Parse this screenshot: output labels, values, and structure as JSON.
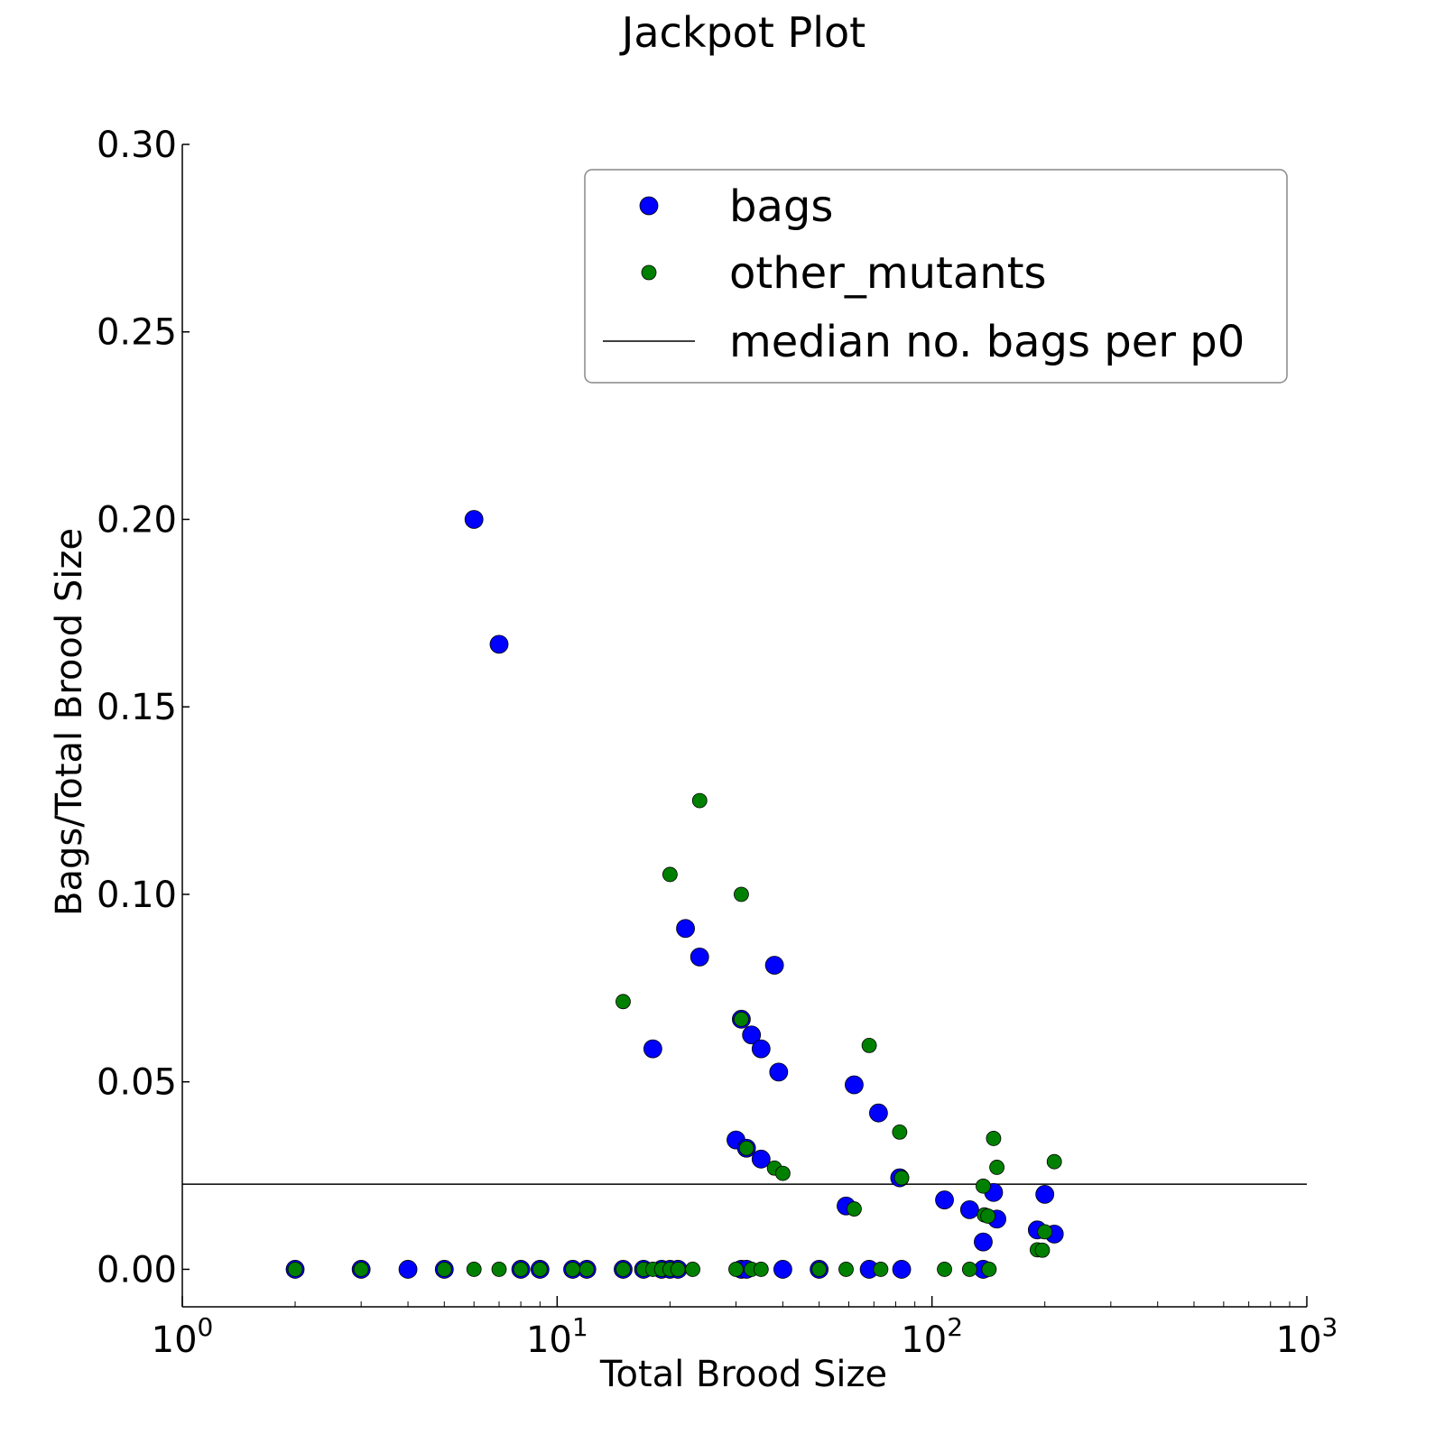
{
  "chart_data": {
    "type": "scatter",
    "title": "Jackpot Plot",
    "xlabel": "Total Brood Size",
    "ylabel": "Bags/Total Brood Size",
    "xscale": "log",
    "xlim": [
      1,
      1000
    ],
    "ylim": [
      -0.01,
      0.3
    ],
    "x_ticks": [
      1,
      10,
      100,
      1000
    ],
    "x_tick_labels": [
      {
        "base": "10",
        "exp": "0"
      },
      {
        "base": "10",
        "exp": "1"
      },
      {
        "base": "10",
        "exp": "2"
      },
      {
        "base": "10",
        "exp": "3"
      }
    ],
    "y_ticks": [
      0.0,
      0.05,
      0.1,
      0.15,
      0.2,
      0.25,
      0.3
    ],
    "y_tick_labels": [
      "0.00",
      "0.05",
      "0.10",
      "0.15",
      "0.20",
      "0.25",
      "0.30"
    ],
    "grid": false,
    "legend_position": "top-right",
    "legend": [
      {
        "label": "bags",
        "kind": "marker",
        "color": "#0000ff",
        "size": "large"
      },
      {
        "label": "other_mutants",
        "kind": "marker",
        "color": "#008000",
        "size": "small"
      },
      {
        "label": "median no. bags per p0",
        "kind": "line",
        "color": "#000000"
      }
    ],
    "reference_line": {
      "name": "median no. bags per p0",
      "y": 0.0227,
      "color": "#000000"
    },
    "series": [
      {
        "name": "bags",
        "color": "#0000ff",
        "points": [
          [
            2,
            0
          ],
          [
            3,
            0
          ],
          [
            4,
            0
          ],
          [
            5,
            0
          ],
          [
            6,
            0.2
          ],
          [
            7,
            0.1667
          ],
          [
            8,
            0
          ],
          [
            9,
            0
          ],
          [
            11,
            0
          ],
          [
            12,
            0
          ],
          [
            15,
            0
          ],
          [
            17,
            0
          ],
          [
            18,
            0.0588
          ],
          [
            19,
            0
          ],
          [
            20,
            0
          ],
          [
            21,
            0
          ],
          [
            22,
            0.0909
          ],
          [
            24,
            0.0833
          ],
          [
            30,
            0.0345
          ],
          [
            31,
            0.0667
          ],
          [
            31,
            0
          ],
          [
            32,
            0.0323
          ],
          [
            32,
            0
          ],
          [
            33,
            0.0625
          ],
          [
            35,
            0.0588
          ],
          [
            35,
            0.0294
          ],
          [
            38,
            0.0811
          ],
          [
            39,
            0.0526
          ],
          [
            40,
            0
          ],
          [
            50,
            0
          ],
          [
            59,
            0.0169
          ],
          [
            62,
            0.0492
          ],
          [
            68,
            0
          ],
          [
            72,
            0.0417
          ],
          [
            82,
            0.0244
          ],
          [
            83,
            0
          ],
          [
            108,
            0.0185
          ],
          [
            126,
            0.0159
          ],
          [
            137,
            0.0073
          ],
          [
            137,
            0
          ],
          [
            146,
            0.0205
          ],
          [
            149,
            0.0134
          ],
          [
            191,
            0.0105
          ],
          [
            200,
            0.02
          ],
          [
            212,
            0.0094
          ]
        ]
      },
      {
        "name": "other_mutants",
        "color": "#008000",
        "points": [
          [
            2,
            0
          ],
          [
            3,
            0
          ],
          [
            5,
            0
          ],
          [
            6,
            0
          ],
          [
            7,
            0
          ],
          [
            8,
            0
          ],
          [
            9,
            0
          ],
          [
            11,
            0
          ],
          [
            12,
            0
          ],
          [
            15,
            0.0714
          ],
          [
            15,
            0
          ],
          [
            17,
            0
          ],
          [
            18,
            0
          ],
          [
            19,
            0
          ],
          [
            20,
            0.1053
          ],
          [
            20,
            0
          ],
          [
            21,
            0
          ],
          [
            23,
            0
          ],
          [
            24,
            0.125
          ],
          [
            30,
            0
          ],
          [
            31,
            0.1
          ],
          [
            31,
            0.0667
          ],
          [
            32,
            0.0323
          ],
          [
            33,
            0
          ],
          [
            35,
            0
          ],
          [
            38,
            0.027
          ],
          [
            40,
            0.0256
          ],
          [
            50,
            0
          ],
          [
            59,
            0
          ],
          [
            62,
            0.0161
          ],
          [
            68,
            0.0597
          ],
          [
            73,
            0
          ],
          [
            82,
            0.0366
          ],
          [
            83,
            0.0244
          ],
          [
            108,
            0
          ],
          [
            126,
            0
          ],
          [
            137,
            0.0222
          ],
          [
            138,
            0.0145
          ],
          [
            141,
            0.0142
          ],
          [
            142,
            0
          ],
          [
            146,
            0.0349
          ],
          [
            149,
            0.0272
          ],
          [
            191,
            0.0052
          ],
          [
            197,
            0.0051
          ],
          [
            200,
            0.01
          ],
          [
            212,
            0.0287
          ]
        ]
      }
    ]
  }
}
